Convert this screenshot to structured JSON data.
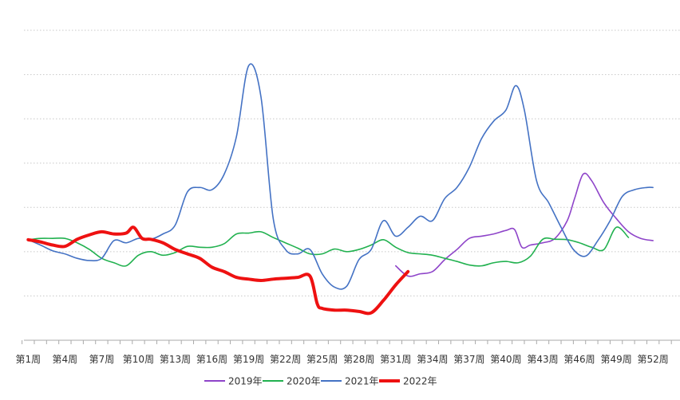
{
  "chart_data": {
    "type": "line",
    "title": "",
    "xlabel": "",
    "ylabel": "",
    "grid": true,
    "legend_position": "bottom-center",
    "ylim": [
      0,
      7
    ],
    "tick_labels": [
      "第1周",
      "第4周",
      "第7周",
      "第10周",
      "第13周",
      "第16周",
      "第19周",
      "第22周",
      "第25周",
      "第28周",
      "第31周",
      "第34周",
      "第37周",
      "第40周",
      "第43周",
      "第46周",
      "第49周",
      "第52周"
    ],
    "tick_weeks": [
      1,
      4,
      7,
      10,
      13,
      16,
      19,
      22,
      25,
      28,
      31,
      34,
      37,
      40,
      43,
      46,
      49,
      52
    ],
    "series": [
      {
        "name": "2019年",
        "color": "#8e44c9",
        "width": 1.6,
        "points": [
          [
            31,
            1.68
          ],
          [
            32,
            1.45
          ],
          [
            33,
            1.5
          ],
          [
            34,
            1.55
          ],
          [
            35,
            1.82
          ],
          [
            36,
            2.05
          ],
          [
            37,
            2.3
          ],
          [
            38,
            2.35
          ],
          [
            39,
            2.4
          ],
          [
            40,
            2.48
          ],
          [
            40.7,
            2.5
          ],
          [
            41.3,
            2.1
          ],
          [
            42,
            2.15
          ],
          [
            43,
            2.2
          ],
          [
            44,
            2.3
          ],
          [
            45,
            2.7
          ],
          [
            45.6,
            3.2
          ],
          [
            46.3,
            3.75
          ],
          [
            47,
            3.6
          ],
          [
            48,
            3.1
          ],
          [
            49,
            2.75
          ],
          [
            50,
            2.45
          ],
          [
            51,
            2.3
          ],
          [
            52,
            2.25
          ]
        ]
      },
      {
        "name": "2020年",
        "color": "#21b14f",
        "width": 1.6,
        "points": [
          [
            1,
            2.27
          ],
          [
            2,
            2.3
          ],
          [
            3,
            2.3
          ],
          [
            4,
            2.3
          ],
          [
            5,
            2.2
          ],
          [
            6,
            2.05
          ],
          [
            7,
            1.85
          ],
          [
            8,
            1.75
          ],
          [
            9,
            1.68
          ],
          [
            10,
            1.92
          ],
          [
            11,
            2.0
          ],
          [
            12,
            1.92
          ],
          [
            13,
            1.98
          ],
          [
            14,
            2.12
          ],
          [
            15,
            2.1
          ],
          [
            16,
            2.1
          ],
          [
            17,
            2.18
          ],
          [
            18,
            2.4
          ],
          [
            19,
            2.42
          ],
          [
            20,
            2.45
          ],
          [
            21,
            2.32
          ],
          [
            22,
            2.2
          ],
          [
            23,
            2.08
          ],
          [
            24,
            1.95
          ],
          [
            25,
            1.95
          ],
          [
            26,
            2.06
          ],
          [
            27,
            2.0
          ],
          [
            28,
            2.05
          ],
          [
            29,
            2.15
          ],
          [
            30,
            2.27
          ],
          [
            31,
            2.1
          ],
          [
            32,
            1.98
          ],
          [
            33,
            1.95
          ],
          [
            34,
            1.92
          ],
          [
            35,
            1.85
          ],
          [
            36,
            1.78
          ],
          [
            37,
            1.7
          ],
          [
            38,
            1.68
          ],
          [
            39,
            1.75
          ],
          [
            40,
            1.78
          ],
          [
            41,
            1.75
          ],
          [
            42,
            1.9
          ],
          [
            43,
            2.28
          ],
          [
            44,
            2.28
          ],
          [
            45,
            2.27
          ],
          [
            46,
            2.2
          ],
          [
            47,
            2.1
          ],
          [
            48,
            2.05
          ],
          [
            49,
            2.55
          ],
          [
            50,
            2.32
          ]
        ]
      },
      {
        "name": "2021年",
        "color": "#4472c4",
        "width": 1.6,
        "points": [
          [
            1,
            2.27
          ],
          [
            2,
            2.15
          ],
          [
            3,
            2.02
          ],
          [
            4,
            1.95
          ],
          [
            5,
            1.85
          ],
          [
            6,
            1.8
          ],
          [
            7,
            1.85
          ],
          [
            8,
            2.25
          ],
          [
            9,
            2.2
          ],
          [
            10,
            2.3
          ],
          [
            11,
            2.28
          ],
          [
            12,
            2.4
          ],
          [
            13,
            2.6
          ],
          [
            14,
            3.35
          ],
          [
            15,
            3.45
          ],
          [
            16,
            3.4
          ],
          [
            17,
            3.75
          ],
          [
            18,
            4.6
          ],
          [
            19,
            6.2
          ],
          [
            20,
            5.5
          ],
          [
            21,
            2.75
          ],
          [
            22,
            2.05
          ],
          [
            23,
            1.95
          ],
          [
            24,
            2.05
          ],
          [
            25,
            1.5
          ],
          [
            26,
            1.2
          ],
          [
            27,
            1.22
          ],
          [
            28,
            1.82
          ],
          [
            29,
            2.05
          ],
          [
            30,
            2.7
          ],
          [
            31,
            2.35
          ],
          [
            32,
            2.55
          ],
          [
            33,
            2.8
          ],
          [
            34,
            2.7
          ],
          [
            35,
            3.2
          ],
          [
            36,
            3.45
          ],
          [
            37,
            3.9
          ],
          [
            38,
            4.55
          ],
          [
            39,
            4.95
          ],
          [
            40,
            5.2
          ],
          [
            40.8,
            5.75
          ],
          [
            41.5,
            5.2
          ],
          [
            42.5,
            3.6
          ],
          [
            43.5,
            3.1
          ],
          [
            44.5,
            2.55
          ],
          [
            45.5,
            2.05
          ],
          [
            46.5,
            1.9
          ],
          [
            47.5,
            2.25
          ],
          [
            48.5,
            2.7
          ],
          [
            49.5,
            3.25
          ],
          [
            50.5,
            3.4
          ],
          [
            51.5,
            3.45
          ],
          [
            52,
            3.45
          ]
        ]
      },
      {
        "name": "2022年",
        "color": "#ee1111",
        "width": 4,
        "points": [
          [
            1,
            2.27
          ],
          [
            2,
            2.22
          ],
          [
            3,
            2.15
          ],
          [
            4,
            2.12
          ],
          [
            5,
            2.28
          ],
          [
            6,
            2.38
          ],
          [
            7,
            2.45
          ],
          [
            8,
            2.4
          ],
          [
            9,
            2.42
          ],
          [
            9.6,
            2.55
          ],
          [
            10.3,
            2.3
          ],
          [
            11,
            2.28
          ],
          [
            12,
            2.2
          ],
          [
            13,
            2.05
          ],
          [
            14,
            1.95
          ],
          [
            15,
            1.85
          ],
          [
            16,
            1.65
          ],
          [
            17,
            1.55
          ],
          [
            18,
            1.42
          ],
          [
            19,
            1.38
          ],
          [
            20,
            1.35
          ],
          [
            21,
            1.38
          ],
          [
            22,
            1.4
          ],
          [
            23,
            1.42
          ],
          [
            24,
            1.45
          ],
          [
            24.6,
            0.82
          ],
          [
            25,
            0.72
          ],
          [
            26,
            0.68
          ],
          [
            27,
            0.68
          ],
          [
            28,
            0.65
          ],
          [
            29,
            0.62
          ],
          [
            30,
            0.9
          ],
          [
            31,
            1.25
          ],
          [
            32,
            1.55
          ]
        ]
      }
    ]
  }
}
